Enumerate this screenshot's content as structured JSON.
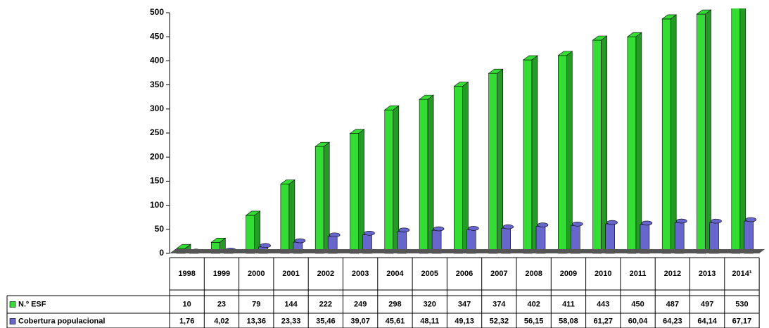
{
  "chart_data": {
    "type": "bar3d",
    "categories": [
      "1998",
      "1999",
      "2000",
      "2001",
      "2002",
      "2003",
      "2004",
      "2005",
      "2006",
      "2007",
      "2008",
      "2009",
      "2010",
      "2011",
      "2012",
      "2013",
      "2014¹"
    ],
    "series": [
      {
        "name": "N.º ESF",
        "color": "#33dd33",
        "values": [
          10,
          23,
          79,
          144,
          222,
          249,
          298,
          320,
          347,
          374,
          402,
          411,
          443,
          450,
          487,
          497,
          530
        ]
      },
      {
        "name": "Cobertura populacional",
        "color": "#6666cc",
        "values": [
          1.76,
          4.02,
          13.36,
          23.33,
          35.46,
          39.07,
          45.61,
          48.11,
          49.13,
          52.32,
          56.15,
          58.08,
          61.27,
          60.04,
          64.23,
          64.14,
          67.17
        ],
        "value_labels": [
          "1,76",
          "4,02",
          "13,36",
          "23,33",
          "35,46",
          "39,07",
          "45,61",
          "48,11",
          "49,13",
          "52,32",
          "56,15",
          "58,08",
          "61,27",
          "60,04",
          "64,23",
          "64,14",
          "67,17"
        ]
      }
    ],
    "ylim": [
      0,
      500
    ],
    "yticks": [
      0,
      50,
      100,
      150,
      200,
      250,
      300,
      350,
      400,
      450,
      500
    ]
  }
}
